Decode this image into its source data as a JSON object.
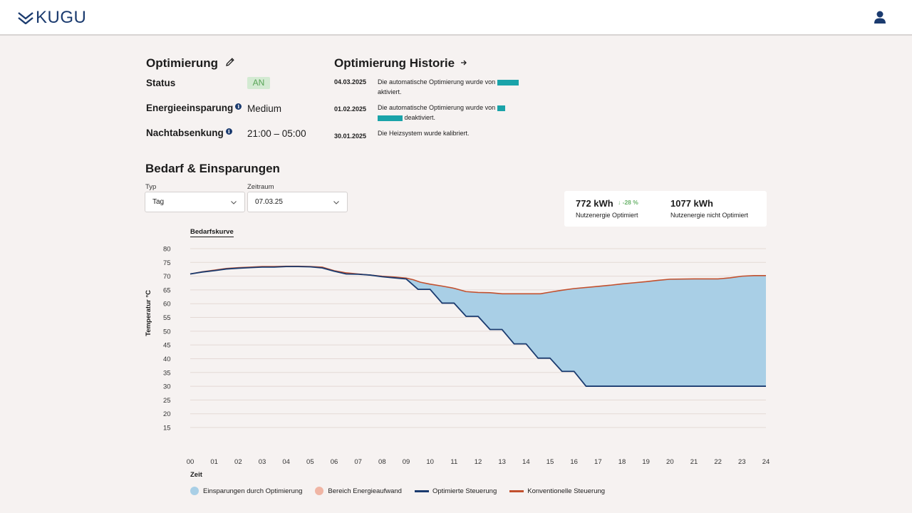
{
  "header": {
    "logo_text": "KUGU"
  },
  "optimierung": {
    "title": "Optimierung",
    "status_label": "Status",
    "status_value": "AN",
    "savings_label": "Energieeinsparung",
    "savings_value": "Medium",
    "night_label": "Nachtabsenkung",
    "night_value": "21:00 – 05:00"
  },
  "historie": {
    "title": "Optimierung Historie",
    "entries": [
      {
        "date": "04.03.2025",
        "text_a": "Die automatische Optimierung wurde von",
        "text_b": "aktiviert."
      },
      {
        "date": "01.02.2025",
        "text_a": "Die automatische Optimierung wurde von",
        "text_b": "deaktiviert."
      },
      {
        "date": "30.01.2025",
        "text_a": "Die Heizsystem wurde kalibriert.",
        "text_b": ""
      }
    ]
  },
  "bedarf": {
    "title": "Bedarf & Einsparungen",
    "typ_label": "Typ",
    "typ_value": "Tag",
    "zeitraum_label": "Zeitraum",
    "zeitraum_value": "07.03.25",
    "kpi1_value": "772 kWh",
    "kpi1_delta": "-28 %",
    "kpi1_label": "Nutzenergie Optimiert",
    "kpi2_value": "1077 kWh",
    "kpi2_label": "Nutzenergie nicht Optimiert",
    "chart_tab": "Bedarfskurve"
  },
  "legend": {
    "savings": "Einsparungen durch Optimierung",
    "range": "Bereich Energieaufwand",
    "optimized": "Optimierte Steuerung",
    "conventional": "Konventionelle Steuerung"
  },
  "colors": {
    "savings_fill": "#a9cfe6",
    "range_fill": "#f0b5a4",
    "optimized_line": "#1b3b6f",
    "conventional_line": "#c2502e",
    "grid": "#e4d9d5"
  },
  "chart_data": {
    "type": "line",
    "xlabel": "Zeit",
    "ylabel": "Temperatur °C",
    "xlim": [
      0,
      24
    ],
    "ylim": [
      15,
      80
    ],
    "yticks": [
      80,
      75,
      70,
      65,
      60,
      55,
      50,
      45,
      40,
      35,
      30,
      25,
      20,
      15
    ],
    "xticks": [
      "00",
      "01",
      "02",
      "03",
      "04",
      "05",
      "06",
      "07",
      "08",
      "09",
      "10",
      "11",
      "12",
      "13",
      "14",
      "15",
      "16",
      "17",
      "18",
      "19",
      "20",
      "21",
      "22",
      "23",
      "24"
    ],
    "series": [
      {
        "name": "Konventionelle Steuerung",
        "points": [
          [
            0,
            70.8
          ],
          [
            0.5,
            71.6
          ],
          [
            1,
            72.2
          ],
          [
            1.5,
            72.8
          ],
          [
            2,
            73.1
          ],
          [
            2.5,
            73.3
          ],
          [
            3,
            73.5
          ],
          [
            3.5,
            73.5
          ],
          [
            4,
            73.6
          ],
          [
            4.5,
            73.6
          ],
          [
            5,
            73.5
          ],
          [
            5.5,
            73.3
          ],
          [
            6,
            72.0
          ],
          [
            6.5,
            71.2
          ],
          [
            7,
            70.8
          ],
          [
            7.5,
            70.4
          ],
          [
            8,
            70.0
          ],
          [
            8.5,
            69.7
          ],
          [
            9,
            69.3
          ],
          [
            9.3,
            68.7
          ],
          [
            9.6,
            67.8
          ],
          [
            10,
            67.1
          ],
          [
            10.5,
            66.4
          ],
          [
            11,
            65.6
          ],
          [
            11.5,
            64.4
          ],
          [
            12,
            64.1
          ],
          [
            12.5,
            64.0
          ],
          [
            13,
            63.6
          ],
          [
            14,
            63.6
          ],
          [
            14.6,
            63.6
          ],
          [
            15,
            64.2
          ],
          [
            15.5,
            64.9
          ],
          [
            16,
            65.5
          ],
          [
            17,
            66.3
          ],
          [
            17.5,
            66.7
          ],
          [
            18,
            67.2
          ],
          [
            18.5,
            67.6
          ],
          [
            19,
            68.0
          ],
          [
            19.5,
            68.5
          ],
          [
            20,
            68.9
          ],
          [
            21,
            69.0
          ],
          [
            22,
            69.0
          ],
          [
            22.5,
            69.4
          ],
          [
            23,
            70.0
          ],
          [
            23.5,
            70.2
          ],
          [
            24,
            70.2
          ]
        ]
      },
      {
        "name": "Optimierte Steuerung",
        "points": [
          [
            0,
            70.8
          ],
          [
            0.5,
            71.5
          ],
          [
            1,
            72.0
          ],
          [
            1.5,
            72.6
          ],
          [
            2,
            72.9
          ],
          [
            2.5,
            73.1
          ],
          [
            3,
            73.3
          ],
          [
            3.5,
            73.3
          ],
          [
            4,
            73.5
          ],
          [
            4.5,
            73.5
          ],
          [
            5,
            73.4
          ],
          [
            5.5,
            73.0
          ],
          [
            6,
            71.8
          ],
          [
            6.5,
            70.8
          ],
          [
            7,
            70.7
          ],
          [
            7.5,
            70.4
          ],
          [
            8,
            69.8
          ],
          [
            8.5,
            69.4
          ],
          [
            9,
            69.0
          ],
          [
            9,
            69.0
          ],
          [
            9.5,
            65.2
          ],
          [
            9.5,
            65.2
          ],
          [
            10,
            65.2
          ],
          [
            10,
            65.2
          ],
          [
            10.5,
            60.2
          ],
          [
            10.5,
            60.2
          ],
          [
            11,
            60.2
          ],
          [
            11,
            60.2
          ],
          [
            11.5,
            55.4
          ],
          [
            11.5,
            55.4
          ],
          [
            12,
            55.4
          ],
          [
            12,
            55.4
          ],
          [
            12.5,
            50.6
          ],
          [
            12.5,
            50.6
          ],
          [
            13,
            50.6
          ],
          [
            13,
            50.6
          ],
          [
            13.5,
            45.4
          ],
          [
            13.5,
            45.4
          ],
          [
            14,
            45.4
          ],
          [
            14,
            45.4
          ],
          [
            14.5,
            40.2
          ],
          [
            14.5,
            40.2
          ],
          [
            15,
            40.2
          ],
          [
            15,
            40.2
          ],
          [
            15.5,
            35.4
          ],
          [
            15.5,
            35.4
          ],
          [
            16,
            35.4
          ],
          [
            16,
            35.4
          ],
          [
            16.5,
            30.0
          ],
          [
            16.5,
            30.0
          ],
          [
            17,
            30.0
          ],
          [
            17,
            30.0
          ],
          [
            17.5,
            30.0
          ],
          [
            17.5,
            30.0
          ],
          [
            18,
            30.0
          ],
          [
            18,
            30.0
          ],
          [
            18.5,
            30.0
          ],
          [
            18.5,
            30.0
          ],
          [
            19,
            30.0
          ],
          [
            19,
            30.0
          ],
          [
            19.5,
            30.0
          ],
          [
            19.5,
            30.0
          ],
          [
            20,
            30.0
          ],
          [
            20,
            30.0
          ],
          [
            20.5,
            30.0
          ],
          [
            20.5,
            30.0
          ],
          [
            21,
            30.0
          ],
          [
            21,
            30.0
          ],
          [
            21.5,
            30.0
          ],
          [
            21.5,
            30.0
          ],
          [
            22,
            30.0
          ],
          [
            22,
            30.0
          ],
          [
            22.5,
            30.0
          ],
          [
            22.5,
            30.0
          ],
          [
            23,
            30.0
          ],
          [
            23,
            30.0
          ],
          [
            23.5,
            30.0
          ],
          [
            23.5,
            30.0
          ],
          [
            24,
            30.0
          ]
        ]
      }
    ]
  }
}
